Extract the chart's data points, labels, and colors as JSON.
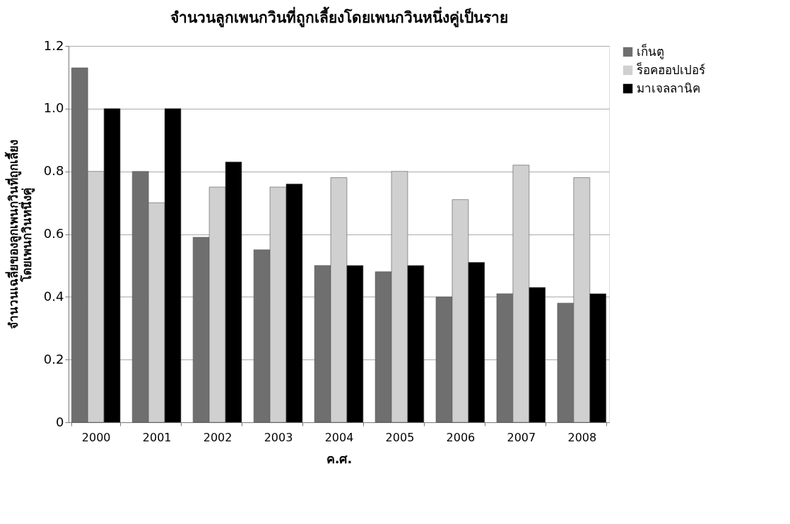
{
  "chart_data": {
    "type": "bar",
    "title": "จำนวนลูกเพนกวินที่ถูกเลี้ยงโดยเพนกวินหนึ่งคู่เป็นราย",
    "xlabel": "ค.ศ.",
    "ylabel": "จำนวนเฉลี่ยของลูกเพนกวินที่ถูกเลี้ยง\nโดยเพนกวินหนึ่งคู่",
    "categories": [
      "2000",
      "2001",
      "2002",
      "2003",
      "2004",
      "2005",
      "2006",
      "2007",
      "2008"
    ],
    "series": [
      {
        "name": "เก็นตู",
        "color": "#6f6f6f",
        "values": [
          1.13,
          0.8,
          0.59,
          0.55,
          0.5,
          0.48,
          0.4,
          0.41,
          0.38
        ]
      },
      {
        "name": "ร็อคฮอปเปอร์",
        "color": "#d0d0d0",
        "values": [
          0.8,
          0.7,
          0.75,
          0.75,
          0.78,
          0.8,
          0.71,
          0.82,
          0.78
        ]
      },
      {
        "name": "มาเจลลานิค",
        "color": "#000000",
        "values": [
          1.0,
          1.0,
          0.83,
          0.76,
          0.5,
          0.5,
          0.51,
          0.43,
          0.41
        ]
      }
    ],
    "ylim": [
      0,
      1.2
    ],
    "yticks": [
      0,
      0.2,
      0.4,
      0.6,
      0.8,
      {
        "value": 1.0,
        "label": "1.0"
      },
      1.2
    ],
    "grid": "y",
    "legend": "right"
  }
}
